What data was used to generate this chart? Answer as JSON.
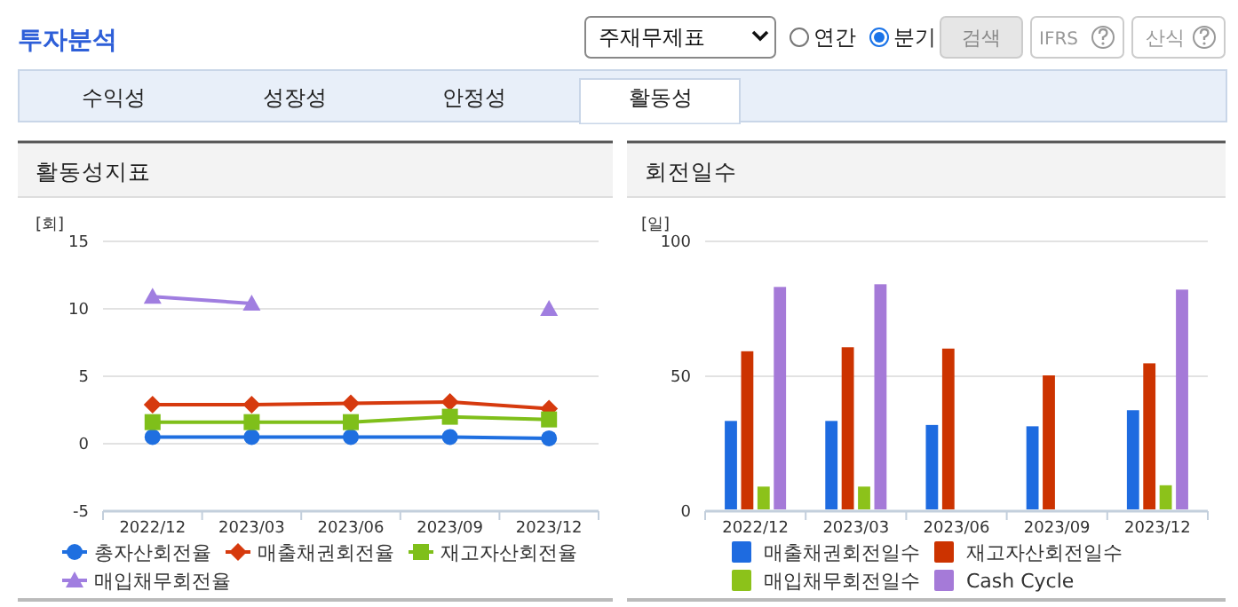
{
  "chart_data": [
    {
      "type": "line",
      "title": "활동성지표",
      "ylabel": "[회]",
      "annotations": [
        "투자분석",
        "주재무제표",
        "연간",
        "분기",
        "검색",
        "IFRS",
        "산식",
        "수익성",
        "성장성",
        "안정성",
        "활동성"
      ],
      "categories": [
        "2022/12",
        "2023/03",
        "2023/06",
        "2023/09",
        "2023/12"
      ],
      "series": [
        {
          "name": "총자산회전율",
          "color": "#1f6fe0",
          "marker": "circle",
          "values": [
            0.5,
            0.5,
            0.5,
            0.5,
            0.4
          ]
        },
        {
          "name": "매출채권회전율",
          "color": "#d63a0e",
          "marker": "diamond",
          "values": [
            2.9,
            2.9,
            3.0,
            3.1,
            2.6
          ]
        },
        {
          "name": "재고자산회전율",
          "color": "#7fbf1a",
          "marker": "square",
          "values": [
            1.6,
            1.6,
            1.6,
            2.0,
            1.8
          ]
        },
        {
          "name": "매입채무회전율",
          "color": "#a07ee0",
          "marker": "triangle",
          "values": [
            10.9,
            10.4,
            null,
            null,
            10.0
          ]
        }
      ],
      "ylim": [
        -5,
        15
      ],
      "yticks": [
        -5,
        0,
        5,
        10,
        15
      ],
      "grid": "y",
      "legend": "bottom"
    },
    {
      "type": "bar",
      "title": "회전일수",
      "ylabel": "[일]",
      "categories": [
        "2022/12",
        "2023/03",
        "2023/06",
        "2023/09",
        "2023/12"
      ],
      "series": [
        {
          "name": "매출채권회전일수",
          "color": "#1e6be0",
          "values": [
            33,
            33,
            31.5,
            31,
            37
          ]
        },
        {
          "name": "재고자산회전일수",
          "color": "#cc3300",
          "values": [
            59,
            60.5,
            60,
            50,
            54.5
          ]
        },
        {
          "name": "매입채무회전일수",
          "color": "#8cc21a",
          "values": [
            8.5,
            8.5,
            null,
            null,
            9
          ]
        },
        {
          "name": "Cash Cycle",
          "color": "#a57ad8",
          "values": [
            83,
            84,
            null,
            null,
            82
          ]
        }
      ],
      "ylim": [
        0,
        100
      ],
      "yticks": [
        0,
        50,
        100
      ],
      "grid": "y",
      "legend": "bottom"
    }
  ]
}
